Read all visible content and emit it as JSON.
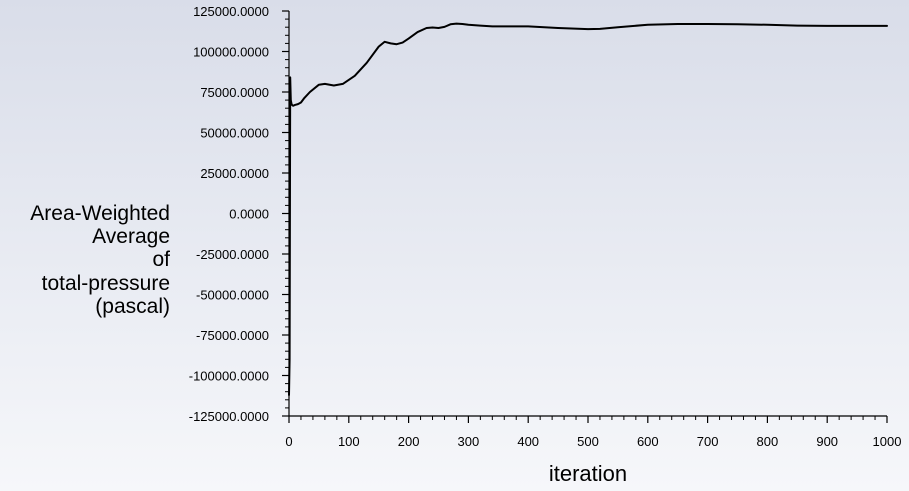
{
  "chart_data": {
    "type": "line",
    "title": "",
    "xlabel": "iteration",
    "ylabel_lines": [
      "Area-Weighted",
      "Average",
      "of",
      "total-pressure",
      "(pascal)"
    ],
    "xlim": [
      0,
      1000
    ],
    "ylim": [
      -125000,
      125000
    ],
    "x_ticks": [
      "0",
      "100",
      "200",
      "300",
      "400",
      "500",
      "600",
      "700",
      "800",
      "900",
      "1000"
    ],
    "y_ticks": [
      "125000.0000",
      "100000.0000",
      "75000.0000",
      "50000.0000",
      "25000.0000",
      "0.0000",
      "-25000.0000",
      "-50000.0000",
      "-75000.0000",
      "-100000.0000",
      "-125000.0000"
    ],
    "grid": false,
    "line_color": "#000000",
    "series": [
      {
        "x": [
          0,
          1,
          2,
          3,
          4,
          5,
          7,
          10,
          15,
          20,
          25,
          35,
          50,
          60,
          75,
          90,
          110,
          130,
          150,
          160,
          170,
          180,
          190,
          200,
          215,
          230,
          240,
          250,
          260,
          270,
          280,
          290,
          300,
          320,
          340,
          360,
          380,
          400,
          450,
          500,
          520,
          550,
          600,
          650,
          700,
          750,
          800,
          850,
          900,
          950,
          1000
        ],
        "y": [
          -112000,
          -90000,
          84000,
          70000,
          68000,
          67000,
          66500,
          67000,
          67500,
          68500,
          71000,
          75000,
          79500,
          80000,
          79000,
          80000,
          85000,
          93000,
          103000,
          106000,
          105000,
          104500,
          105500,
          108000,
          112000,
          114500,
          114800,
          114500,
          115200,
          116800,
          117200,
          117000,
          116500,
          116000,
          115500,
          115500,
          115500,
          115500,
          114500,
          113800,
          114000,
          115000,
          116500,
          117000,
          117000,
          116800,
          116500,
          116000,
          115800,
          115800,
          115800
        ]
      }
    ]
  }
}
